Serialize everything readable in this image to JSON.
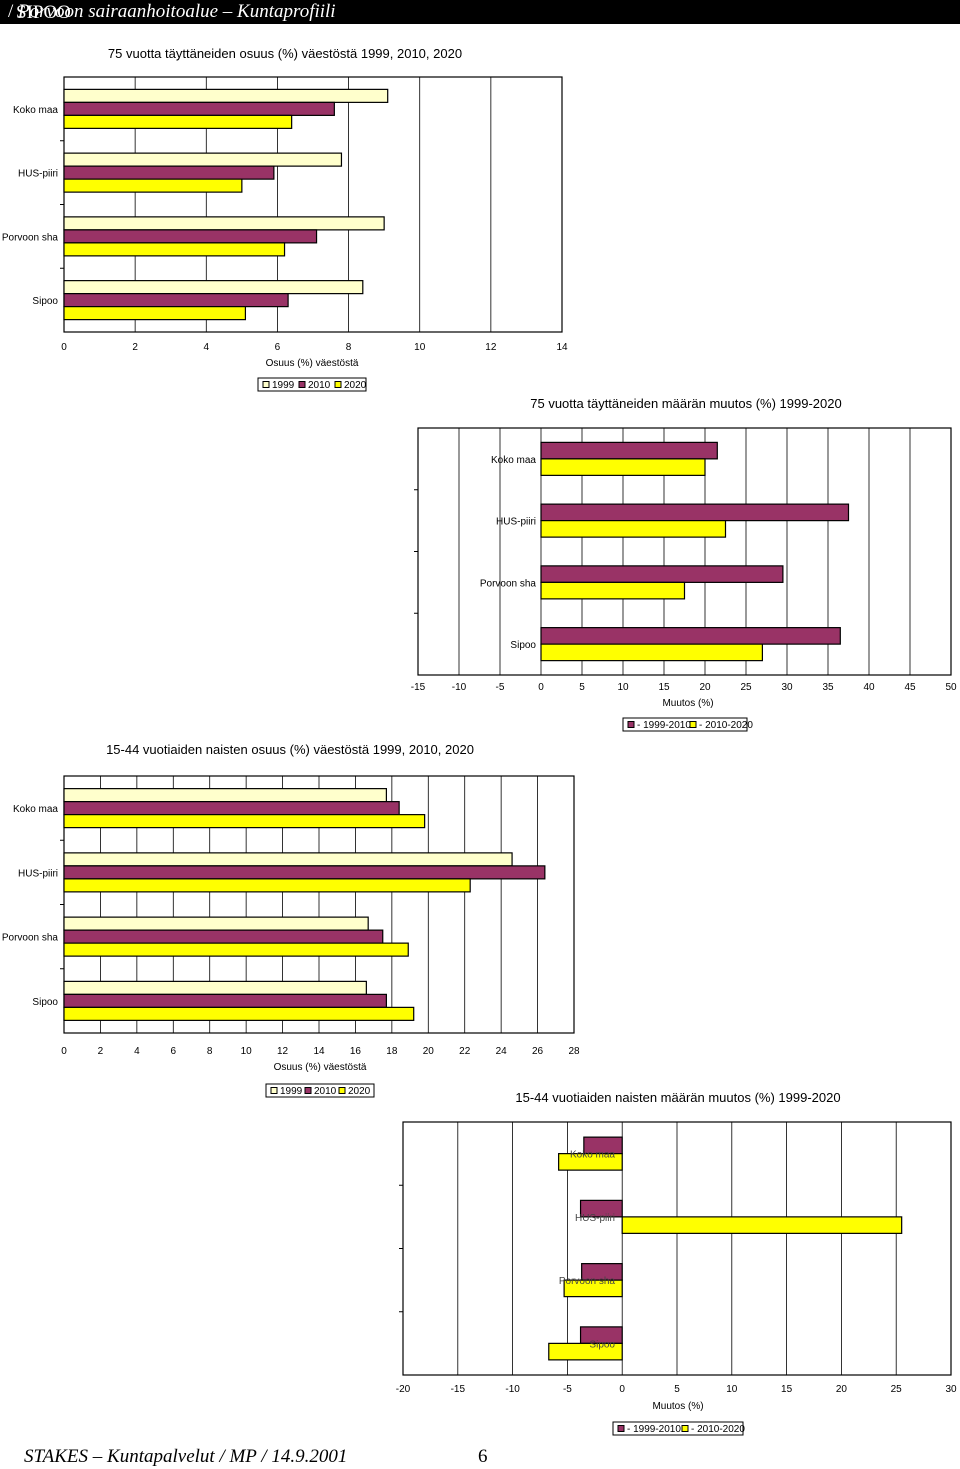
{
  "header": {
    "title": "SIPOO",
    "subtitle": "Porvoon sairaanhoitoalue – Kuntaprofiili"
  },
  "footer": {
    "text": "STAKES – Kuntapalvelut / MP / 14.9.2001",
    "page": "6"
  },
  "colors": {
    "s1999": "#FFFFCC",
    "s2010": "#993366",
    "s2020": "#FFFF00",
    "grid": "#000000"
  },
  "chart_data": [
    {
      "type": "bar",
      "orientation": "horizontal",
      "title": "75 vuotta täyttäneiden osuus (%) väestöstä 1999, 2010, 2020",
      "xlabel": "Osuus (%) väestöstä",
      "ylabel": "",
      "categories": [
        "Koko maa",
        "HUS-piiri",
        "Porvoon sha",
        "Sipoo"
      ],
      "xlim": [
        0,
        14
      ],
      "xticks": [
        0,
        2,
        4,
        6,
        8,
        10,
        12,
        14
      ],
      "legend": "bottom",
      "legend_labels": [
        "1999",
        "2010",
        "2020"
      ],
      "series": [
        {
          "name": "1999",
          "color_key": "s1999",
          "values": [
            9.1,
            7.8,
            9.0,
            8.4
          ]
        },
        {
          "name": "2010",
          "color_key": "s2010",
          "values": [
            7.6,
            5.9,
            7.1,
            6.3
          ]
        },
        {
          "name": "2020",
          "color_key": "s2020",
          "values": [
            6.4,
            5.0,
            6.2,
            5.1
          ]
        }
      ]
    },
    {
      "type": "bar",
      "orientation": "horizontal",
      "title": "75 vuotta täyttäneiden määrän muutos (%) 1999-2020",
      "xlabel": "Muutos (%)",
      "ylabel": "",
      "categories": [
        "Koko maa",
        "HUS-piiri",
        "Porvoon sha",
        "Sipoo"
      ],
      "xlim": [
        -15,
        50
      ],
      "xticks": [
        -15,
        -10,
        -5,
        0,
        5,
        10,
        15,
        20,
        25,
        30,
        35,
        40,
        45,
        50
      ],
      "legend": "bottom-right",
      "legend_labels": [
        "- 1999-2010",
        "- 2010-2020"
      ],
      "series": [
        {
          "name": "1999-2010",
          "color_key": "s2010",
          "values": [
            21.5,
            37.5,
            29.5,
            36.5
          ]
        },
        {
          "name": "2010-2020",
          "color_key": "s2020",
          "values": [
            20.0,
            22.5,
            17.5,
            27.0
          ]
        }
      ]
    },
    {
      "type": "bar",
      "orientation": "horizontal",
      "title": "15-44 vuotiaiden naisten osuus (%) väestöstä 1999, 2010, 2020",
      "xlabel": "Osuus (%) väestöstä",
      "ylabel": "",
      "categories": [
        "Koko maa",
        "HUS-piiri",
        "Porvoon sha",
        "Sipoo"
      ],
      "xlim": [
        0,
        28
      ],
      "xticks": [
        0,
        2,
        4,
        6,
        8,
        10,
        12,
        14,
        16,
        18,
        20,
        22,
        24,
        26,
        28
      ],
      "legend": "bottom",
      "legend_labels": [
        "1999",
        "2010",
        "2020"
      ],
      "series": [
        {
          "name": "1999",
          "color_key": "s1999",
          "values": [
            17.7,
            24.6,
            16.7,
            16.6
          ]
        },
        {
          "name": "2010",
          "color_key": "s2010",
          "values": [
            18.4,
            26.4,
            17.5,
            17.7
          ]
        },
        {
          "name": "2020",
          "color_key": "s2020",
          "values": [
            19.8,
            22.3,
            18.9,
            19.2
          ]
        }
      ]
    },
    {
      "type": "bar",
      "orientation": "horizontal",
      "title": "15-44 vuotiaiden naisten määrän muutos (%) 1999-2020",
      "xlabel": "Muutos (%)",
      "ylabel": "",
      "categories": [
        "Koko maa",
        "HUS-piiri",
        "Porvoon sha",
        "Sipoo"
      ],
      "xlim": [
        -20,
        30
      ],
      "xticks": [
        -20,
        -15,
        -10,
        -5,
        0,
        5,
        10,
        15,
        20,
        25,
        30
      ],
      "legend": "bottom-right",
      "legend_labels": [
        "- 1999-2010",
        "- 2010-2020"
      ],
      "series": [
        {
          "name": "1999-2010",
          "color_key": "s2010",
          "values": [
            -3.5,
            -3.8,
            -3.7,
            -3.8
          ]
        },
        {
          "name": "2010-2020",
          "color_key": "s2020",
          "values": [
            -5.8,
            25.5,
            -5.3,
            -6.7
          ]
        }
      ]
    }
  ]
}
